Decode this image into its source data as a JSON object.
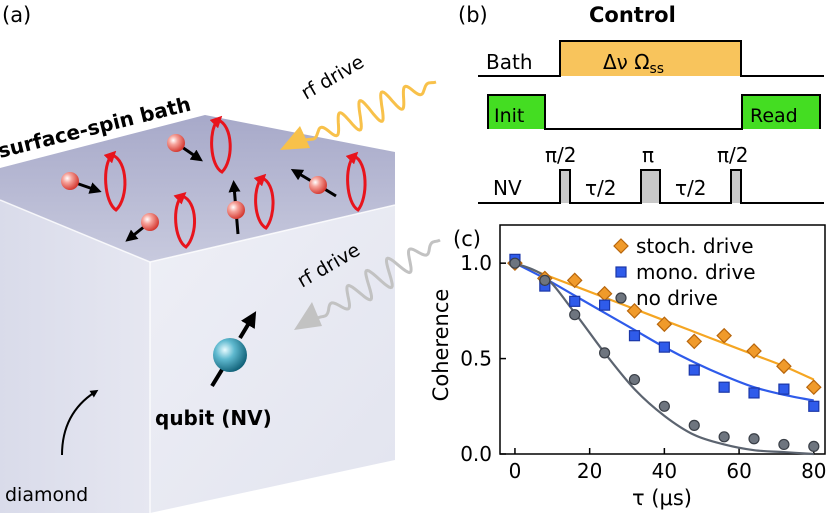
{
  "panel_a": {
    "label": "(a)",
    "bath_label": "surface-spin bath",
    "rf_drive_top": "rf drive",
    "rf_drive_bottom": "rf drive",
    "qubit_label": "qubit (NV)",
    "diamond_label": "diamond"
  },
  "panel_b": {
    "label": "(b)",
    "title": "Control",
    "bath_row": "Bath",
    "bath_pulse": "Δν  Ω",
    "bath_pulse_sub": "ss",
    "init": "Init",
    "read": "Read",
    "nv_row": "NV",
    "pi_half_1": "π/2",
    "pi": "π",
    "pi_half_2": "π/2",
    "tau_half_1": "τ/2",
    "tau_half_2": "τ/2"
  },
  "panel_c": {
    "label": "(c)"
  },
  "colors": {
    "stoch": "#f5a623",
    "mono": "#2f5bea",
    "none": "#5c6470",
    "pulse_green": "#44dd22",
    "bath_pulse": "#f8c45c",
    "red_arrow": "#e8141c"
  },
  "chart_data": {
    "type": "scatter",
    "xlabel": "τ (μs)",
    "ylabel": "Coherence",
    "xlim": [
      -4,
      83
    ],
    "ylim": [
      0.0,
      1.2
    ],
    "xticks": [
      0,
      20,
      40,
      60,
      80
    ],
    "xtick_labels": [
      "0",
      "20",
      "40",
      "60",
      "80"
    ],
    "yticks": [
      0.0,
      0.5,
      1.0
    ],
    "ytick_labels": [
      "0.0",
      "0.5",
      "1.0"
    ],
    "legend_position": "top-right",
    "series": [
      {
        "name": "stoch. drive",
        "marker": "diamond",
        "x": [
          0,
          8,
          16,
          24,
          32,
          40,
          48,
          56,
          64,
          72,
          80
        ],
        "y": [
          1.0,
          0.92,
          0.91,
          0.84,
          0.75,
          0.68,
          0.59,
          0.62,
          0.54,
          0.46,
          0.35
        ],
        "fit": [
          1.0,
          0.94,
          0.88,
          0.82,
          0.76,
          0.7,
          0.64,
          0.58,
          0.52,
          0.46,
          0.39
        ]
      },
      {
        "name": "mono. drive",
        "marker": "square",
        "x": [
          0,
          8,
          16,
          24,
          32,
          40,
          48,
          56,
          64,
          72,
          80
        ],
        "y": [
          1.02,
          0.88,
          0.8,
          0.78,
          0.62,
          0.56,
          0.44,
          0.35,
          0.32,
          0.34,
          0.25
        ],
        "fit": [
          1.0,
          0.92,
          0.83,
          0.74,
          0.65,
          0.56,
          0.48,
          0.41,
          0.35,
          0.31,
          0.28
        ]
      },
      {
        "name": "no drive",
        "marker": "circle",
        "x": [
          0,
          8,
          16,
          24,
          32,
          40,
          48,
          56,
          64,
          72,
          80
        ],
        "y": [
          1.0,
          0.91,
          0.73,
          0.53,
          0.39,
          0.25,
          0.15,
          0.09,
          0.08,
          0.05,
          0.04
        ],
        "fit": [
          1.0,
          0.93,
          0.74,
          0.53,
          0.34,
          0.2,
          0.1,
          0.05,
          0.02,
          0.01,
          0.0
        ]
      }
    ]
  }
}
